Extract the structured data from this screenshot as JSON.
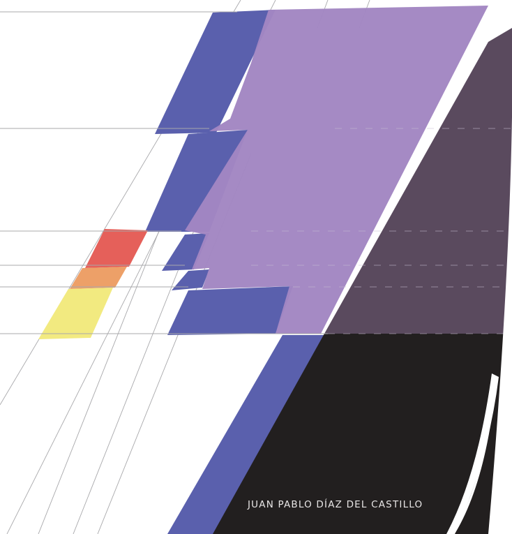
{
  "cover": {
    "author": "JUAN PABLO DÍAZ DEL CASTILLO",
    "colors": {
      "background": "#ffffff",
      "violet": "#a286c2",
      "blue": "#5a60ad",
      "dark_purple": "#5a4a5e",
      "black": "#221f1f",
      "red": "#e5605a",
      "orange": "#eda068",
      "yellow": "#f2ea80",
      "guide_line": "#a8a8ab",
      "text": "#e8e6e6"
    }
  }
}
